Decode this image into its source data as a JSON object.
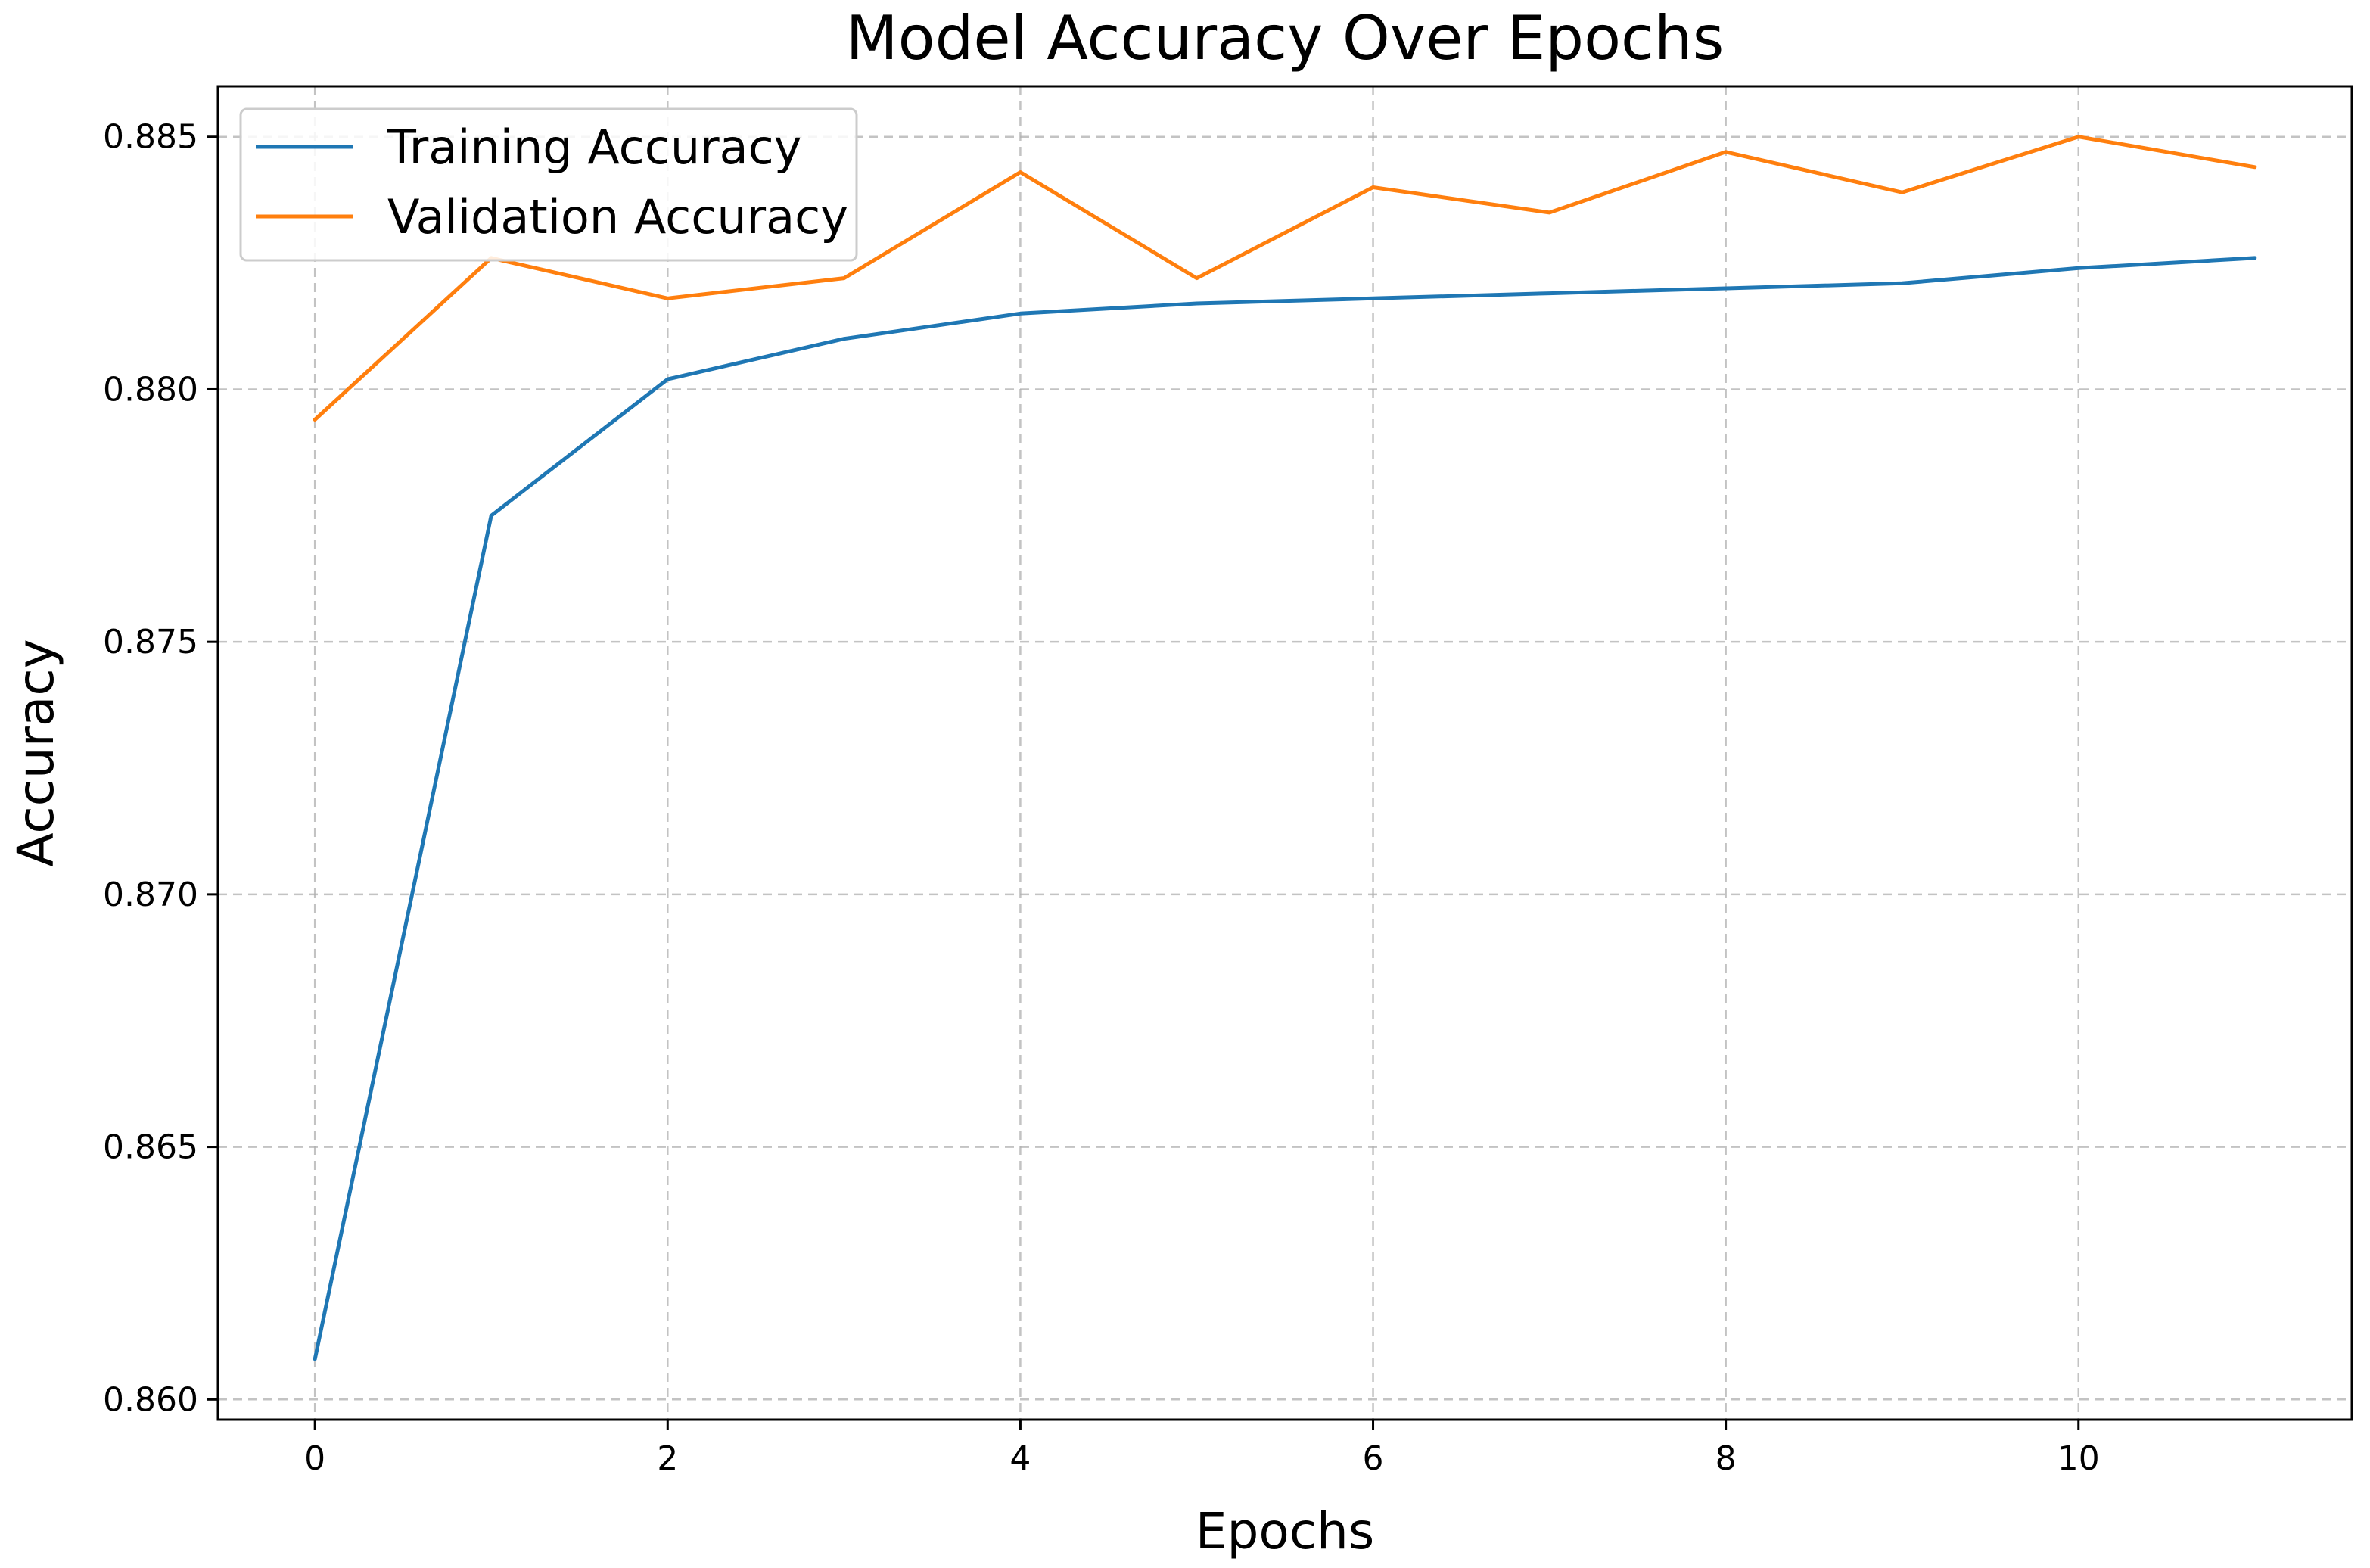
{
  "chart_data": {
    "type": "line",
    "title": "Model Accuracy Over Epochs",
    "xlabel": "Epochs",
    "ylabel": "Accuracy",
    "xlim": [
      -0.55,
      11.55
    ],
    "ylim": [
      0.8596,
      0.886
    ],
    "xticks": [
      0,
      2,
      4,
      6,
      8,
      10
    ],
    "xtick_labels": [
      "0",
      "2",
      "4",
      "6",
      "8",
      "10"
    ],
    "yticks": [
      0.86,
      0.865,
      0.87,
      0.875,
      0.88,
      0.885
    ],
    "ytick_labels": [
      "0.860",
      "0.865",
      "0.870",
      "0.875",
      "0.880",
      "0.885"
    ],
    "grid": true,
    "legend_position": "upper-left",
    "x": [
      0,
      1,
      2,
      3,
      4,
      5,
      6,
      7,
      8,
      9,
      10,
      11
    ],
    "series": [
      {
        "name": "Training Accuracy",
        "color": "#1f77b4",
        "values": [
          0.8608,
          0.8775,
          0.8802,
          0.881,
          0.8815,
          0.8817,
          0.8818,
          0.8819,
          0.882,
          0.8821,
          0.8824,
          0.8826
        ]
      },
      {
        "name": "Validation Accuracy",
        "color": "#ff7f0e",
        "values": [
          0.8794,
          0.8826,
          0.8818,
          0.8822,
          0.8843,
          0.8822,
          0.884,
          0.8835,
          0.8847,
          0.8839,
          0.885,
          0.8844
        ]
      }
    ]
  }
}
